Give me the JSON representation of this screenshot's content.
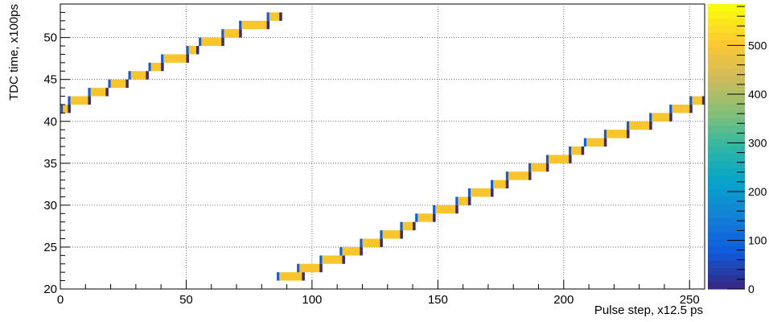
{
  "chart_data": {
    "type": "heatmap",
    "xlabel": "Pulse step, x12.5 ps",
    "ylabel": "TDC time, x100ps",
    "xlim": [
      0,
      256
    ],
    "ylim": [
      20,
      54
    ],
    "xticks": [
      0,
      50,
      100,
      150,
      200,
      250
    ],
    "yticks": [
      20,
      25,
      30,
      35,
      40,
      45,
      50
    ],
    "grid": true,
    "colorbar": {
      "range": [
        0,
        585
      ],
      "ticks": [
        0,
        100,
        200,
        300,
        400,
        500
      ],
      "palette": [
        "#352a87",
        "#0f5cdd",
        "#1481d6",
        "#06a4ca",
        "#2eb7a4",
        "#87bf77",
        "#d1bb59",
        "#fec832",
        "#f9fb0e"
      ]
    },
    "bin_height": 1,
    "segments": [
      {
        "y": 41.5,
        "x": [
          0,
          4
        ]
      },
      {
        "y": 42.5,
        "x": [
          3,
          12
        ]
      },
      {
        "y": 43.5,
        "x": [
          11,
          19
        ]
      },
      {
        "y": 44.5,
        "x": [
          19,
          27
        ]
      },
      {
        "y": 45.5,
        "x": [
          27,
          35
        ]
      },
      {
        "y": 46.5,
        "x": [
          35,
          41
        ]
      },
      {
        "y": 47.5,
        "x": [
          40,
          51
        ]
      },
      {
        "y": 48.5,
        "x": [
          50,
          55
        ]
      },
      {
        "y": 49.5,
        "x": [
          55,
          65
        ]
      },
      {
        "y": 50.5,
        "x": [
          64,
          72
        ]
      },
      {
        "y": 51.5,
        "x": [
          71,
          83
        ]
      },
      {
        "y": 52.5,
        "x": [
          82,
          88
        ]
      },
      {
        "y": 21.5,
        "x": [
          86,
          97
        ]
      },
      {
        "y": 22.5,
        "x": [
          94,
          104
        ]
      },
      {
        "y": 23.5,
        "x": [
          103,
          113
        ]
      },
      {
        "y": 24.5,
        "x": [
          111,
          120
        ]
      },
      {
        "y": 25.5,
        "x": [
          119,
          128
        ]
      },
      {
        "y": 26.5,
        "x": [
          127,
          136
        ]
      },
      {
        "y": 27.5,
        "x": [
          135,
          141
        ]
      },
      {
        "y": 28.5,
        "x": [
          141,
          149
        ]
      },
      {
        "y": 29.5,
        "x": [
          148,
          158
        ]
      },
      {
        "y": 30.5,
        "x": [
          157,
          163
        ]
      },
      {
        "y": 31.5,
        "x": [
          162,
          172
        ]
      },
      {
        "y": 32.5,
        "x": [
          171,
          178
        ]
      },
      {
        "y": 33.5,
        "x": [
          177,
          187
        ]
      },
      {
        "y": 34.5,
        "x": [
          186,
          194
        ]
      },
      {
        "y": 35.5,
        "x": [
          193,
          203
        ]
      },
      {
        "y": 36.5,
        "x": [
          202,
          208
        ]
      },
      {
        "y": 37.5,
        "x": [
          208,
          217
        ]
      },
      {
        "y": 38.5,
        "x": [
          216,
          226
        ]
      },
      {
        "y": 39.5,
        "x": [
          225,
          235
        ]
      },
      {
        "y": 40.5,
        "x": [
          234,
          243
        ]
      },
      {
        "y": 41.5,
        "x": [
          242,
          251
        ]
      },
      {
        "y": 42.5,
        "x": [
          250,
          256
        ]
      }
    ]
  }
}
